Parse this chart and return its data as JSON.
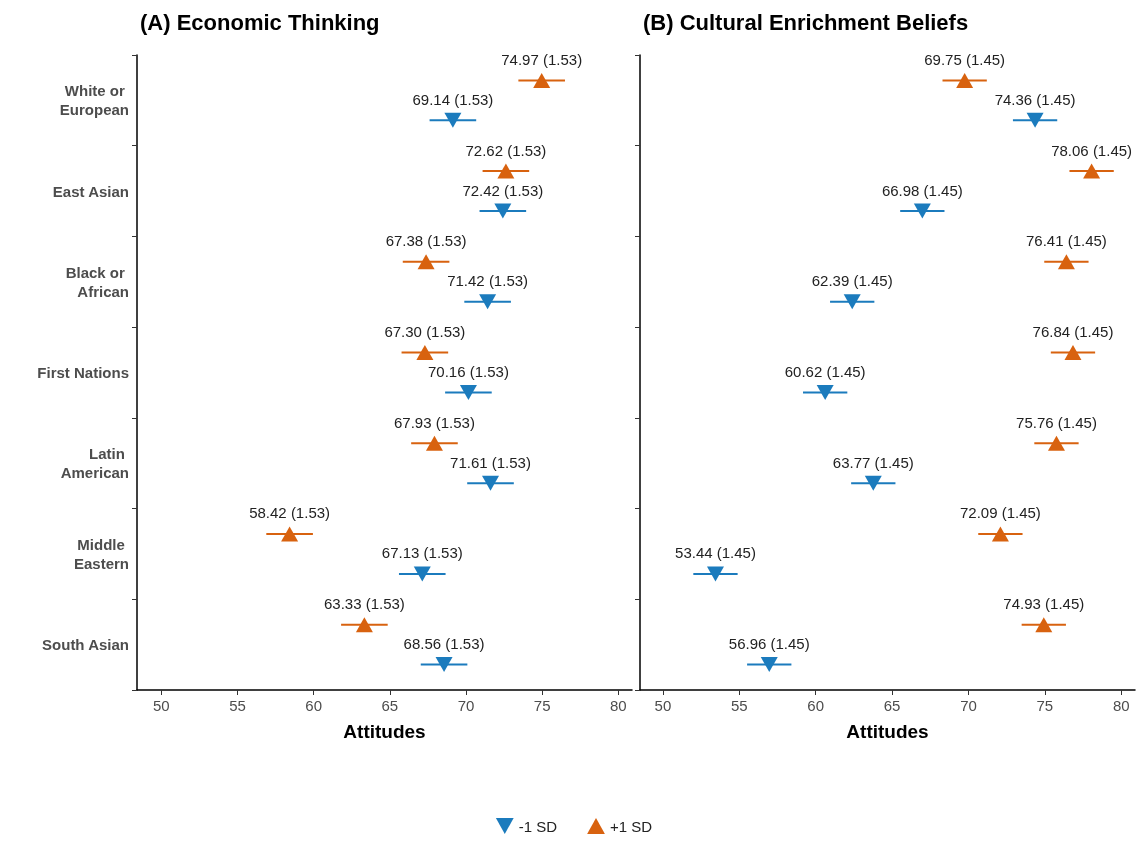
{
  "chart_data": [
    {
      "type": "scatter",
      "orientation": "horizontal",
      "title": "(A) Economic Thinking",
      "xlabel": "Attitudes",
      "categories": [
        "White or European",
        "East Asian",
        "Black or African",
        "First Nations",
        "Latin American",
        "Middle Eastern",
        "South Asian"
      ],
      "xlim": [
        48.4,
        80.9
      ],
      "xticks": [
        50,
        55,
        60,
        65,
        70,
        75,
        80
      ],
      "grid": false,
      "legend": "bottom",
      "series": [
        {
          "name": "-1 SD",
          "color": "#1b7bbd",
          "marker": "triangle-down",
          "values": [
            69.14,
            72.42,
            71.42,
            70.16,
            71.61,
            67.13,
            68.56
          ],
          "errors": [
            1.53,
            1.53,
            1.53,
            1.53,
            1.53,
            1.53,
            1.53
          ],
          "value_labels": [
            "69.14 (1.53)",
            "72.42 (1.53)",
            "71.42 (1.53)",
            "70.16 (1.53)",
            "71.61 (1.53)",
            "67.13 (1.53)",
            "68.56 (1.53)"
          ]
        },
        {
          "name": "+1 SD",
          "color": "#d8620f",
          "marker": "triangle",
          "values": [
            74.97,
            72.62,
            67.38,
            67.3,
            67.93,
            58.42,
            63.33
          ],
          "errors": [
            1.53,
            1.53,
            1.53,
            1.53,
            1.53,
            1.53,
            1.53
          ],
          "value_labels": [
            "74.97 (1.53)",
            "72.62 (1.53)",
            "67.38 (1.53)",
            "67.30 (1.53)",
            "67.93 (1.53)",
            "58.42 (1.53)",
            "63.33 (1.53)"
          ]
        }
      ]
    },
    {
      "type": "scatter",
      "orientation": "horizontal",
      "title": "(B) Cultural Enrichment Beliefs",
      "xlabel": "Attitudes",
      "categories": [
        "White or European",
        "East Asian",
        "Black or African",
        "First Nations",
        "Latin American",
        "Middle Eastern",
        "South Asian"
      ],
      "xlim": [
        48.5,
        80.9
      ],
      "xticks": [
        50,
        55,
        60,
        65,
        70,
        75,
        80
      ],
      "grid": false,
      "tick_labels": "x",
      "series": [
        {
          "name": "-1 SD",
          "color": "#1b7bbd",
          "marker": "triangle-down",
          "values": [
            74.36,
            66.98,
            62.39,
            60.62,
            63.77,
            53.44,
            56.96
          ],
          "errors": [
            1.45,
            1.45,
            1.45,
            1.45,
            1.45,
            1.45,
            1.45
          ],
          "value_labels": [
            "74.36 (1.45)",
            "66.98 (1.45)",
            "62.39 (1.45)",
            "60.62 (1.45)",
            "63.77 (1.45)",
            "53.44 (1.45)",
            "56.96 (1.45)"
          ]
        },
        {
          "name": "+1 SD",
          "color": "#d8620f",
          "marker": "triangle",
          "values": [
            69.75,
            78.06,
            76.41,
            76.84,
            75.76,
            72.09,
            74.93
          ],
          "errors": [
            1.45,
            1.45,
            1.45,
            1.45,
            1.45,
            1.45,
            1.45
          ],
          "value_labels": [
            "69.75 (1.45)",
            "78.06 (1.45)",
            "76.41 (1.45)",
            "76.84 (1.45)",
            "75.76 (1.45)",
            "72.09 (1.45)",
            "74.93 (1.45)"
          ]
        }
      ]
    }
  ]
}
